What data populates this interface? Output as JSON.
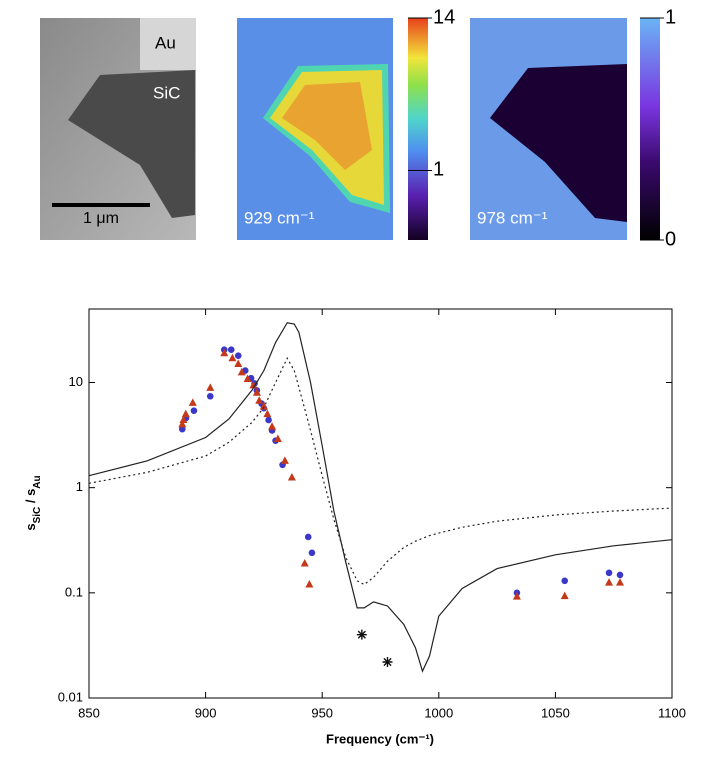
{
  "panels": [
    {
      "labels": [
        "Au",
        "SiC"
      ],
      "scale_bar": "1 μm"
    },
    {
      "label": "929 cm⁻¹",
      "colorbar": {
        "lim": [
          0.3,
          14
        ],
        "ticks": [
          1,
          14
        ],
        "log": true
      }
    },
    {
      "label": "978 cm⁻¹",
      "colorbar": {
        "lim": [
          0,
          1
        ],
        "ticks": [
          0,
          1
        ],
        "log": false
      }
    }
  ],
  "chart_data": {
    "type": "scatter",
    "xlabel": "Frequency (cm⁻¹)",
    "ylabel": [
      "s",
      "SiC",
      " / s",
      "Au"
    ],
    "xlim": [
      850,
      1100
    ],
    "xticks": [
      850,
      900,
      950,
      1000,
      1050,
      1100
    ],
    "ylim": [
      0.01,
      50
    ],
    "yticks": [
      0.01,
      0.1,
      1,
      10
    ],
    "log_y": true,
    "series": [
      {
        "mode": "circle",
        "color": "#3a37c9",
        "x": [
          890,
          891.6,
          895,
          902,
          908,
          911,
          914,
          917,
          919.5,
          921,
          922,
          924,
          925,
          927,
          928.5,
          930,
          933,
          944,
          945.6,
          1033.5,
          1054,
          1073,
          1077.7
        ],
        "values": [
          3.6,
          4.6,
          5.4,
          7.4,
          20.5,
          20.5,
          18,
          13,
          11,
          9.8,
          8.4,
          6.3,
          5.7,
          4.4,
          3.5,
          2.8,
          1.65,
          0.34,
          0.24,
          0.1,
          0.13,
          0.155,
          0.148
        ]
      },
      {
        "mode": "triangle",
        "color": "#c4391a",
        "x": [
          890,
          890.5,
          891.5,
          894.5,
          902,
          908,
          911.5,
          914,
          915.5,
          918,
          920.5,
          922,
          923,
          925,
          926.5,
          928.5,
          931,
          934,
          937,
          942.5,
          944.5,
          1033.5,
          1054,
          1073,
          1077.7
        ],
        "values": [
          4.0,
          4.4,
          5.0,
          6.4,
          8.9,
          19,
          17,
          15,
          12.5,
          10.8,
          9.4,
          8.0,
          6.7,
          5.9,
          5.0,
          3.8,
          2.9,
          1.8,
          1.25,
          0.19,
          0.12,
          0.092,
          0.093,
          0.125,
          0.125
        ]
      },
      {
        "mode": "solid",
        "color": "#222222",
        "x": [
          850,
          875,
          900,
          910,
          920,
          925,
          930,
          935,
          938,
          940,
          945,
          950,
          955,
          960,
          965,
          968,
          972,
          978,
          985,
          990,
          993,
          996,
          1000,
          1010,
          1025,
          1050,
          1075,
          1100
        ],
        "values": [
          1.3,
          1.8,
          3.0,
          4.5,
          8.5,
          13,
          24,
          37,
          36,
          30,
          10,
          2.5,
          0.6,
          0.2,
          0.072,
          0.072,
          0.082,
          0.075,
          0.05,
          0.03,
          0.018,
          0.025,
          0.06,
          0.11,
          0.17,
          0.23,
          0.28,
          0.32
        ]
      },
      {
        "mode": "dotted",
        "color": "#222222",
        "x": [
          850,
          875,
          900,
          910,
          920,
          925,
          930,
          935,
          938,
          940,
          945,
          950,
          955,
          960,
          965,
          968,
          972,
          978,
          985,
          990,
          993,
          996,
          1000,
          1010,
          1025,
          1050,
          1075,
          1100
        ],
        "values": [
          1.1,
          1.4,
          2.0,
          2.7,
          4.2,
          5.8,
          10,
          17,
          13,
          9,
          3.5,
          1.3,
          0.5,
          0.22,
          0.13,
          0.12,
          0.14,
          0.2,
          0.27,
          0.31,
          0.33,
          0.35,
          0.37,
          0.42,
          0.48,
          0.55,
          0.6,
          0.64
        ]
      },
      {
        "mode": "asterisk",
        "color": "#111111",
        "x": [
          967,
          978
        ],
        "values": [
          0.04,
          0.022
        ]
      }
    ]
  }
}
